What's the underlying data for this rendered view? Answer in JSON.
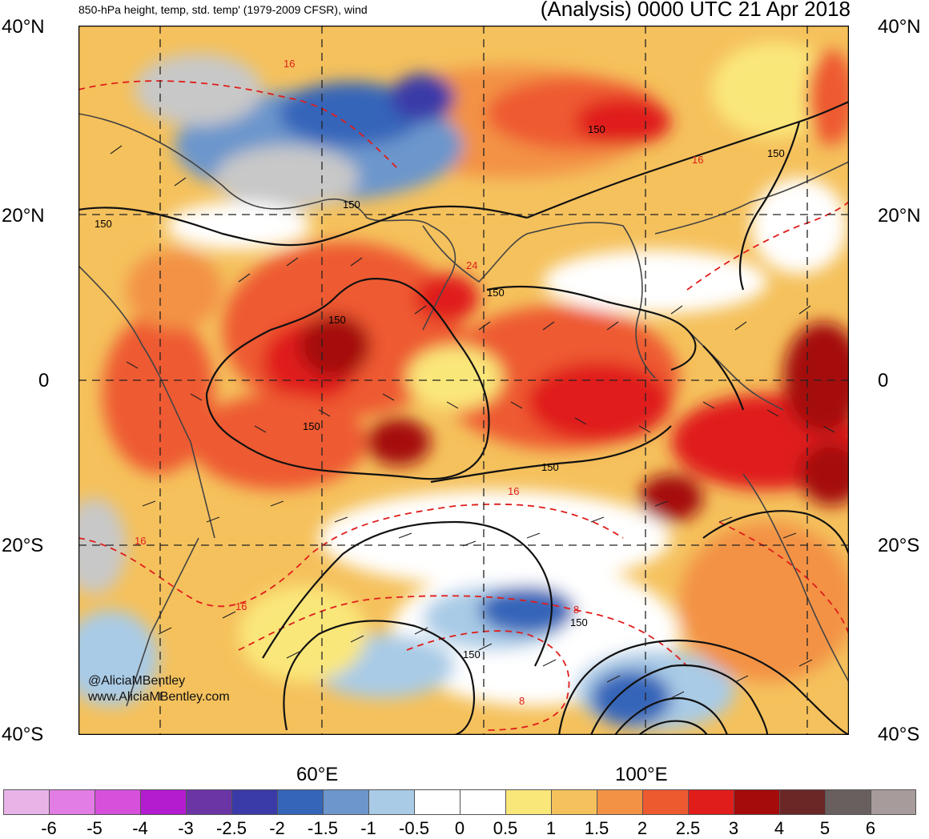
{
  "header": {
    "left_title": "850-hPa height, temp, std. temp' (1979-2009 CFSR), wind",
    "right_title": "(Analysis) 0000 UTC 21 Apr 2018"
  },
  "axes": {
    "lat_labels": [
      "40°N",
      "20°N",
      "0",
      "20°S",
      "40°S"
    ],
    "lon_labels": [
      "60°E",
      "100°E"
    ]
  },
  "contour_labels": {
    "height": [
      "150",
      "150",
      "150",
      "150",
      "150",
      "150",
      "150",
      "150",
      "150",
      "150"
    ],
    "temperature": [
      "16",
      "16",
      "24",
      "16",
      "16",
      "16",
      "8",
      "8"
    ]
  },
  "credits": {
    "handle": "@AliciaMBentley",
    "website": "www.AliciaMBentley.com"
  },
  "colorbar": {
    "colors": [
      "#e8b4e8",
      "#e37de6",
      "#d650dc",
      "#b41cd0",
      "#6b35a6",
      "#3a3aa8",
      "#3465b9",
      "#6c96cc",
      "#a9cbe6",
      "#ffffff",
      "#ffffff",
      "#fae77a",
      "#f5c15c",
      "#f39245",
      "#ee5a30",
      "#e01d1a",
      "#a50b0b",
      "#6b2626",
      "#6a5f5f",
      "#a89b9b"
    ],
    "ticks": [
      "-6",
      "-5",
      "-4",
      "-3",
      "-2.5",
      "-2",
      "-1.5",
      "-1",
      "-0.5",
      "0",
      "0.5",
      "1",
      "1.5",
      "2",
      "2.5",
      "3",
      "4",
      "5",
      "6"
    ]
  }
}
